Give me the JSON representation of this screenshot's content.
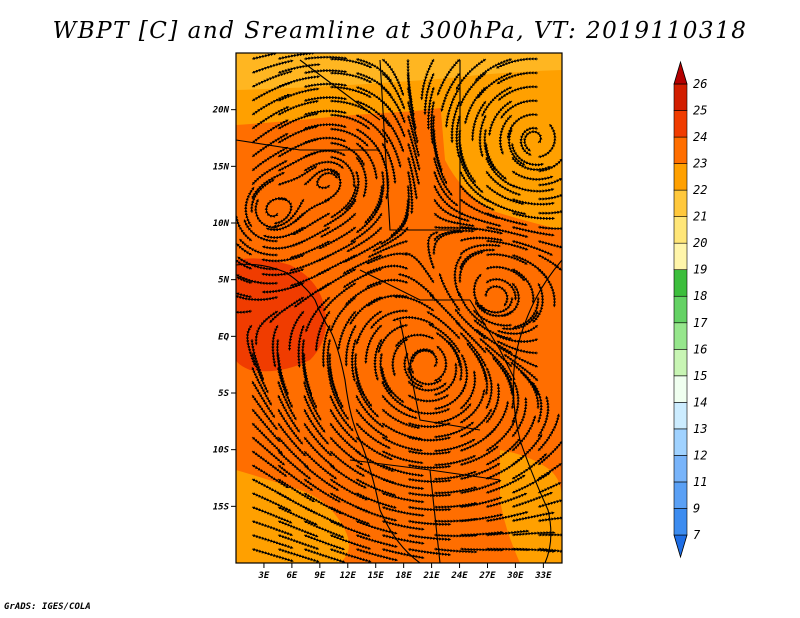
{
  "title": "WBPT [C] and Sreamline at 300hPa, VT: 2019110318",
  "footer": "GrADS: IGES/COLA",
  "map": {
    "lon_range": [
      0,
      35
    ],
    "lat_range": [
      -20,
      25
    ],
    "x_ticks": [
      "3E",
      "6E",
      "9E",
      "12E",
      "15E",
      "18E",
      "21E",
      "24E",
      "27E",
      "30E",
      "33E"
    ],
    "y_ticks": [
      "20N",
      "15N",
      "10N",
      "5N",
      "EQ",
      "5S",
      "10S",
      "15S"
    ]
  },
  "colorbar": {
    "labels": [
      "7",
      "9",
      "11",
      "12",
      "13",
      "14",
      "15",
      "16",
      "17",
      "18",
      "19",
      "20",
      "21",
      "22",
      "23",
      "24",
      "25",
      "26"
    ],
    "colors": [
      "#1e6ee6",
      "#3c8cf0",
      "#5aa0f5",
      "#78b4fa",
      "#a0d2ff",
      "#ccecff",
      "#f0fff0",
      "#c8f5b4",
      "#96e68c",
      "#64d264",
      "#3cbe3c",
      "#fff5aa",
      "#ffe678",
      "#ffc83c",
      "#ffa000",
      "#ff6e00",
      "#f03c00",
      "#d21e00",
      "#b40000"
    ]
  }
}
